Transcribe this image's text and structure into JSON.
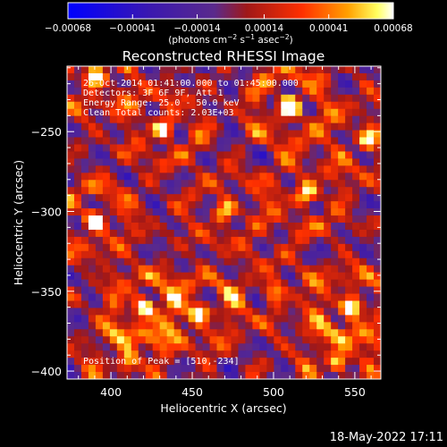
{
  "chart_data": {
    "type": "heatmap",
    "title": "Reconstructed RHESSI Image",
    "xlabel": "Heliocentric X (arcsec)",
    "ylabel": "Heliocentric Y (arcsec)",
    "xlim": [
      373,
      566
    ],
    "ylim": [
      -405,
      -209
    ],
    "x_ticks": [
      400,
      450,
      500,
      550
    ],
    "x_tick_labels": [
      "400",
      "450",
      "500",
      "550"
    ],
    "y_ticks": [
      -400,
      -350,
      -300,
      -250
    ],
    "y_tick_labels": [
      "−400",
      "−350",
      "−300",
      "−250"
    ],
    "colorbar": {
      "min": -0.00068,
      "max": 0.00068,
      "ticks": [
        -0.00068,
        -0.00041,
        -0.00014,
        0.00014,
        0.00041,
        0.00068
      ],
      "tick_labels": [
        "−0.00068",
        "−0.00041",
        "−0.00014",
        "0.00014",
        "0.00041",
        "0.00068"
      ],
      "unit_prefix": "(photons cm",
      "unit_exp1": "−2",
      "unit_mid": " s",
      "unit_exp2": "−1",
      "unit_mid2": " asec",
      "unit_exp3": "−2",
      "unit_suffix": ")",
      "colormap": "blue-purple-red-yellow-white"
    },
    "info_lines": [
      "26-Oct-2014 01:41:00.000 to 01:45:00.000",
      "Detectors: 3F 6F 9F, Att 1",
      "Energy Range: 25.0 - 50.0 keV",
      "Clean    Total counts: 2.03E+03"
    ],
    "peak_label": "Position of Peak = [510,-234]",
    "peak": {
      "x": 510,
      "y": -234
    },
    "grid": false,
    "hotspots": [
      {
        "x": 390,
        "y": -305,
        "v": 0.0006
      },
      {
        "x": 420,
        "y": -360,
        "v": 0.00062
      },
      {
        "x": 510,
        "y": -234,
        "v": 0.00068
      },
      {
        "x": 455,
        "y": -363,
        "v": 0.00055
      },
      {
        "x": 548,
        "y": -360,
        "v": 0.0006
      },
      {
        "x": 390,
        "y": -215,
        "v": 0.00058
      },
      {
        "x": 433,
        "y": -248,
        "v": 0.0005
      },
      {
        "x": 520,
        "y": -290,
        "v": 0.00048
      },
      {
        "x": 560,
        "y": -255,
        "v": 0.00045
      },
      {
        "x": 470,
        "y": -300,
        "v": 0.0004
      },
      {
        "x": 540,
        "y": -395,
        "v": 0.00052
      },
      {
        "x": 410,
        "y": -395,
        "v": 0.0005
      },
      {
        "x": 500,
        "y": -350,
        "v": 0.00035
      }
    ]
  },
  "footer": {
    "datetime": "18-May-2022 17:11"
  },
  "colors": {
    "background": "#000000",
    "foreground": "#ffffff",
    "axis": "#ffffff"
  }
}
